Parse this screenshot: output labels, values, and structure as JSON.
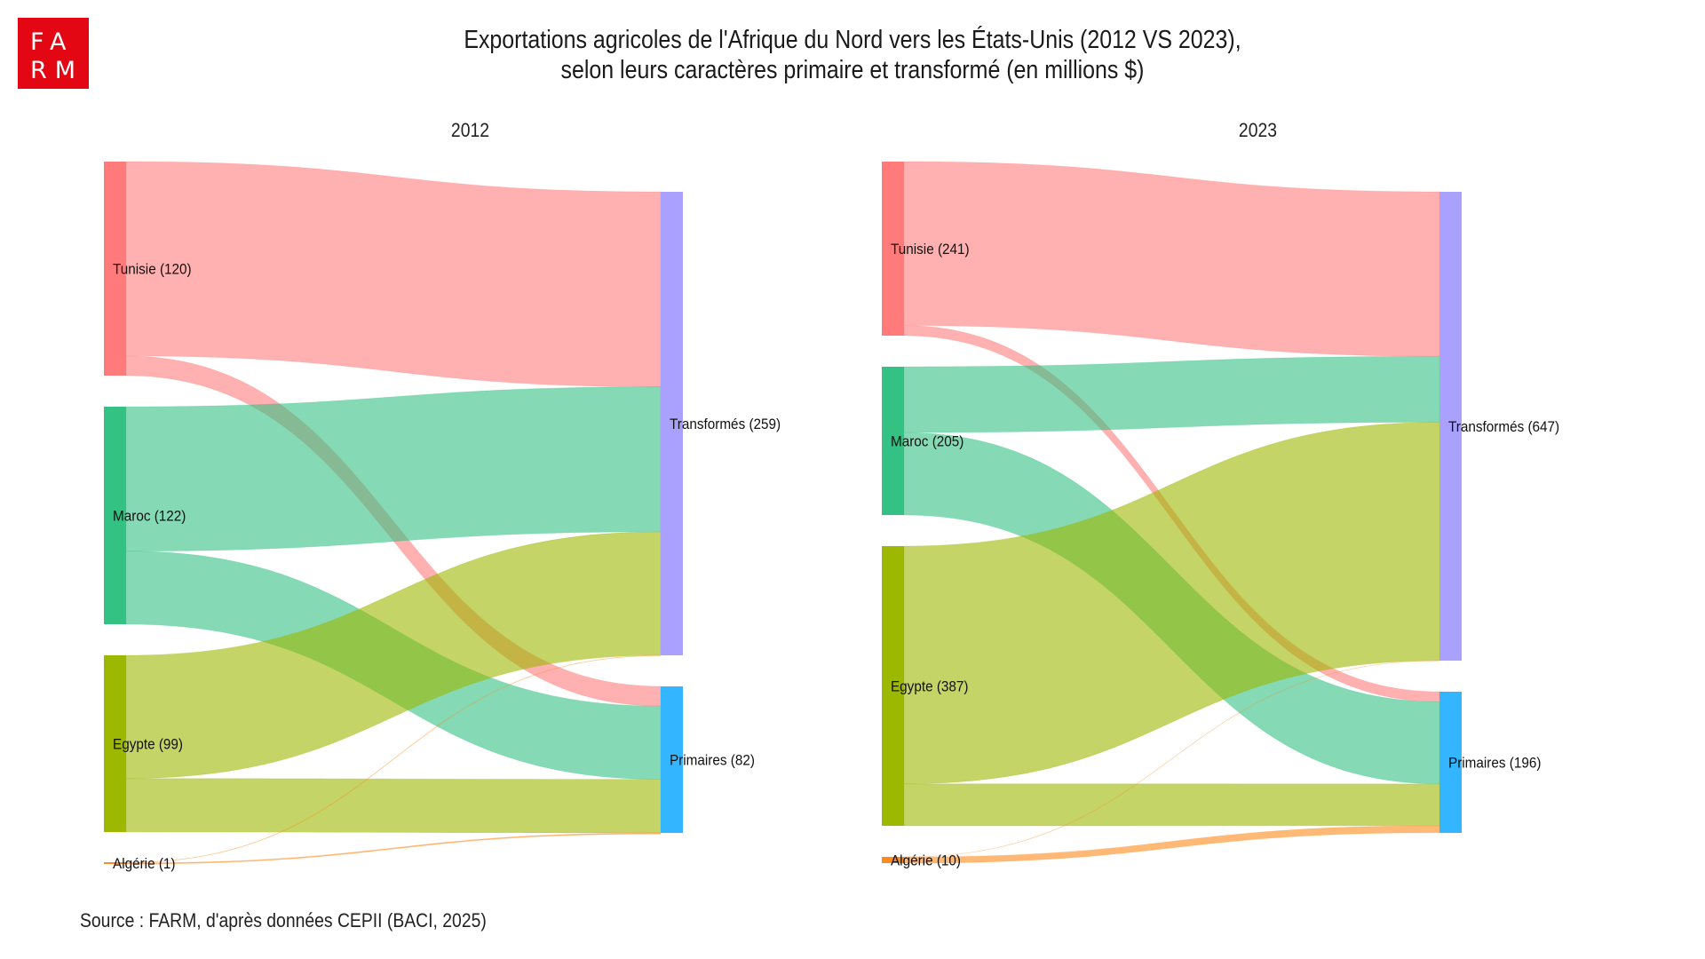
{
  "logo": {
    "line1": "FA",
    "line2": "RM",
    "color": "#E30613"
  },
  "title": {
    "line1": "Exportations agricoles de l'Afrique du Nord vers les États-Unis (2012 VS 2023),",
    "line2": "selon leurs caractères primaire et transformé (en millions $)"
  },
  "source": "Source : FARM, d'après données CEPII (BACI, 2025)",
  "colors": {
    "Tunisie": "#FF7B7B",
    "Maroc": "#33C184",
    "Egypte": "#9DB800",
    "Algérie": "#FF8A1C",
    "Transformés": "#AAA1FF",
    "Primaires": "#33B6FF"
  },
  "chart_data": [
    {
      "type": "sankey",
      "title": "2012",
      "unit": "millions $",
      "sources": [
        {
          "name": "Tunisie",
          "label": "Tunisie (120)",
          "value": 120
        },
        {
          "name": "Maroc",
          "label": "Maroc (122)",
          "value": 122
        },
        {
          "name": "Egypte",
          "label": "Egypte (99)",
          "value": 99
        },
        {
          "name": "Algérie",
          "label": "Algérie (1)",
          "value": 1
        }
      ],
      "targets": [
        {
          "name": "Transformés",
          "label": "Transformés (259)",
          "value": 259
        },
        {
          "name": "Primaires",
          "label": "Primaires (82)",
          "value": 82
        }
      ],
      "links": [
        {
          "source": "Tunisie",
          "target": "Transformés",
          "value": 109
        },
        {
          "source": "Tunisie",
          "target": "Primaires",
          "value": 11
        },
        {
          "source": "Maroc",
          "target": "Transformés",
          "value": 81
        },
        {
          "source": "Maroc",
          "target": "Primaires",
          "value": 41
        },
        {
          "source": "Egypte",
          "target": "Transformés",
          "value": 69
        },
        {
          "source": "Egypte",
          "target": "Primaires",
          "value": 30
        },
        {
          "source": "Algérie",
          "target": "Transformés",
          "value": 0.4
        },
        {
          "source": "Algérie",
          "target": "Primaires",
          "value": 0.6
        }
      ]
    },
    {
      "type": "sankey",
      "title": "2023",
      "unit": "millions $",
      "sources": [
        {
          "name": "Tunisie",
          "label": "Tunisie (241)",
          "value": 241
        },
        {
          "name": "Maroc",
          "label": "Maroc (205)",
          "value": 205
        },
        {
          "name": "Egypte",
          "label": "Egypte (387)",
          "value": 387
        },
        {
          "name": "Algérie",
          "label": "Algérie (10)",
          "value": 10
        }
      ],
      "targets": [
        {
          "name": "Transformés",
          "label": "Transformés (647)",
          "value": 647
        },
        {
          "name": "Primaires",
          "label": "Primaires (196)",
          "value": 196
        }
      ],
      "links": [
        {
          "source": "Tunisie",
          "target": "Transformés",
          "value": 227
        },
        {
          "source": "Tunisie",
          "target": "Primaires",
          "value": 14
        },
        {
          "source": "Maroc",
          "target": "Transformés",
          "value": 91
        },
        {
          "source": "Maroc",
          "target": "Primaires",
          "value": 114
        },
        {
          "source": "Egypte",
          "target": "Transformés",
          "value": 329
        },
        {
          "source": "Egypte",
          "target": "Primaires",
          "value": 58
        },
        {
          "source": "Algérie",
          "target": "Transformés",
          "value": 0.3
        },
        {
          "source": "Algérie",
          "target": "Primaires",
          "value": 9.7
        }
      ]
    }
  ]
}
